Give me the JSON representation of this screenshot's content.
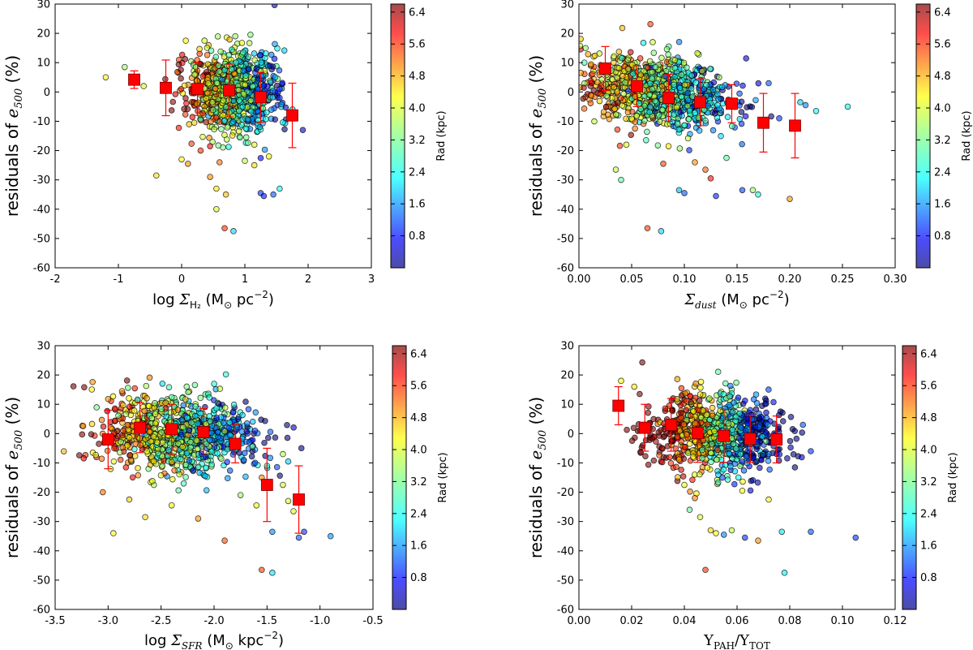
{
  "colors": {
    "scale": [
      "#00007f",
      "#0000ff",
      "#007fff",
      "#00ffff",
      "#7fff7f",
      "#ffff00",
      "#ff7f00",
      "#ff0000",
      "#7f0000"
    ],
    "median_marker": "#ff0000",
    "error_bar": "#ff0000"
  },
  "colorbar": {
    "label": "Rad (kpc)",
    "min": 0.0,
    "max": 6.6,
    "ticks": [
      "0.8",
      "1.6",
      "2.4",
      "3.2",
      "4.0",
      "4.8",
      "5.6",
      "6.4"
    ]
  },
  "chart_data": [
    {
      "type": "scatter",
      "ylabel_main": "residuals of ",
      "ylabel_math": "e",
      "ylabel_sub": "500",
      "ylabel_tail": " (%)",
      "xlabel_parts": [
        {
          "t": "log ",
          "cls": ""
        },
        {
          "t": "Σ",
          "cls": "math"
        },
        {
          "t": "H₂",
          "cls": "sub"
        },
        {
          "t": " (M",
          "cls": ""
        },
        {
          "t": "⊙",
          "cls": "sub"
        },
        {
          "t": " pc",
          "cls": ""
        },
        {
          "t": "−2",
          "cls": "sup"
        },
        {
          "t": ")",
          "cls": ""
        }
      ],
      "xlim": [
        -2,
        3
      ],
      "ylim": [
        -60,
        30
      ],
      "xticks": [
        "-2",
        "-1",
        "0",
        "1",
        "2",
        "3"
      ],
      "yticks": [
        "-60",
        "-50",
        "-40",
        "-30",
        "-20",
        "-10",
        "0",
        "10",
        "20",
        "30"
      ],
      "medians": {
        "x": [
          -0.75,
          -0.25,
          0.25,
          0.75,
          1.25,
          1.75
        ],
        "y": [
          4.2,
          1.4,
          1.0,
          0.5,
          -1.8,
          -8.0
        ],
        "err": [
          3.0,
          9.5,
          9.0,
          9.0,
          8.5,
          11.0
        ]
      },
      "cloud": {
        "x_center": 0.8,
        "x_spread": 0.35,
        "y_center": 0.5,
        "y_spread": 7,
        "x_slope": -2.5,
        "rad_slope": -3.0,
        "n": 900
      },
      "outliers": [
        {
          "x": -1.2,
          "y": 5.0,
          "rad": 4.2
        },
        {
          "x": -0.9,
          "y": 8.5,
          "rad": 3.5
        },
        {
          "x": -0.6,
          "y": 2.0,
          "rad": 4.0
        },
        {
          "x": -0.4,
          "y": -28.5,
          "rad": 4.5
        },
        {
          "x": 0.0,
          "y": -23.0,
          "rad": 4.3
        },
        {
          "x": 0.1,
          "y": -24.5,
          "rad": 5.0
        },
        {
          "x": 0.3,
          "y": -20.0,
          "rad": 5.6
        },
        {
          "x": 0.45,
          "y": -18.5,
          "rad": 5.9
        },
        {
          "x": 0.45,
          "y": -29.0,
          "rad": 5.0
        },
        {
          "x": 0.55,
          "y": -33.0,
          "rad": 4.4
        },
        {
          "x": 0.6,
          "y": -24.0,
          "rad": 5.2
        },
        {
          "x": 0.55,
          "y": -40.0,
          "rad": 4.0
        },
        {
          "x": 0.7,
          "y": -35.0,
          "rad": 4.7
        },
        {
          "x": 0.68,
          "y": -46.5,
          "rad": 5.6
        },
        {
          "x": 0.82,
          "y": -47.5,
          "rad": 2.0
        },
        {
          "x": 1.0,
          "y": -23.5,
          "rad": 3.8
        },
        {
          "x": 1.15,
          "y": -25.0,
          "rad": 4.5
        },
        {
          "x": 1.25,
          "y": -34.5,
          "rad": 1.0
        },
        {
          "x": 1.3,
          "y": -35.5,
          "rad": 0.8
        },
        {
          "x": 1.38,
          "y": -22.0,
          "rad": 4.2
        },
        {
          "x": 1.45,
          "y": -35.0,
          "rad": 1.2
        },
        {
          "x": 1.55,
          "y": -33.0,
          "rad": 2.3
        },
        {
          "x": 1.55,
          "y": 1.0,
          "rad": 1.0
        },
        {
          "x": 1.55,
          "y": -2.0,
          "rad": 1.0
        },
        {
          "x": 1.15,
          "y": -18.0,
          "rad": 4.0
        },
        {
          "x": 0.2,
          "y": -10.5,
          "rad": 4.6
        }
      ]
    },
    {
      "type": "scatter",
      "ylabel_main": "residuals of ",
      "ylabel_math": "e",
      "ylabel_sub": "500",
      "ylabel_tail": " (%)",
      "xlabel_parts": [
        {
          "t": "Σ",
          "cls": "math"
        },
        {
          "t": "dust",
          "cls": "submath"
        },
        {
          "t": " (M",
          "cls": ""
        },
        {
          "t": "⊙",
          "cls": "sub"
        },
        {
          "t": " pc",
          "cls": ""
        },
        {
          "t": "−2",
          "cls": "sup"
        },
        {
          "t": ")",
          "cls": ""
        }
      ],
      "xlim": [
        0.0,
        0.3
      ],
      "ylim": [
        -60,
        30
      ],
      "xticks": [
        "0.00",
        "0.05",
        "0.10",
        "0.15",
        "0.20",
        "0.25",
        "0.30"
      ],
      "yticks": [
        "-60",
        "-50",
        "-40",
        "-30",
        "-20",
        "-10",
        "0",
        "10",
        "20",
        "30"
      ],
      "medians": {
        "x": [
          0.025,
          0.055,
          0.085,
          0.115,
          0.145,
          0.175,
          0.205
        ],
        "y": [
          8.0,
          2.0,
          -2.0,
          -3.5,
          -4.0,
          -10.5,
          -11.5
        ],
        "err": [
          7.5,
          7.0,
          8.0,
          8.0,
          6.5,
          10.0,
          11.0
        ]
      },
      "cloud": {
        "x_center": 0.075,
        "x_spread": 0.035,
        "y_center": 0.0,
        "y_spread": 6,
        "x_slope": -90,
        "rad_slope": -30,
        "n": 900
      },
      "outliers": [
        {
          "x": 0.035,
          "y": -26.5,
          "rad": 3.8
        },
        {
          "x": 0.04,
          "y": -30.0,
          "rad": 3.0
        },
        {
          "x": 0.065,
          "y": -46.5,
          "rad": 5.5
        },
        {
          "x": 0.078,
          "y": -47.5,
          "rad": 2.0
        },
        {
          "x": 0.08,
          "y": -24.5,
          "rad": 5.5
        },
        {
          "x": 0.095,
          "y": -33.5,
          "rad": 1.8
        },
        {
          "x": 0.1,
          "y": -34.5,
          "rad": 1.2
        },
        {
          "x": 0.11,
          "y": -24.0,
          "rad": 5.0
        },
        {
          "x": 0.12,
          "y": -26.5,
          "rad": 5.3
        },
        {
          "x": 0.125,
          "y": -29.5,
          "rad": 5.8
        },
        {
          "x": 0.13,
          "y": -35.5,
          "rad": 0.9
        },
        {
          "x": 0.14,
          "y": -22.5,
          "rad": 3.0
        },
        {
          "x": 0.155,
          "y": -33.5,
          "rad": 1.1
        },
        {
          "x": 0.165,
          "y": -33.5,
          "rad": 3.5
        },
        {
          "x": 0.17,
          "y": -35.0,
          "rad": 2.5
        },
        {
          "x": 0.18,
          "y": 3.0,
          "rad": 1.2
        },
        {
          "x": 0.19,
          "y": -9.0,
          "rad": 1.0
        },
        {
          "x": 0.2,
          "y": -36.5,
          "rad": 5.0
        },
        {
          "x": 0.21,
          "y": -3.5,
          "rad": 2.0
        },
        {
          "x": 0.215,
          "y": -4.5,
          "rad": 1.5
        },
        {
          "x": 0.225,
          "y": -6.5,
          "rad": 2.3
        },
        {
          "x": 0.255,
          "y": -5.0,
          "rad": 2.3
        },
        {
          "x": 0.045,
          "y": -18.0,
          "rad": 4.1
        },
        {
          "x": 0.085,
          "y": -18.5,
          "rad": 4.4
        },
        {
          "x": 0.07,
          "y": 17.0,
          "rad": 3.9
        }
      ]
    },
    {
      "type": "scatter",
      "ylabel_main": "residuals of ",
      "ylabel_math": "e",
      "ylabel_sub": "500",
      "ylabel_tail": " (%)",
      "xlabel_parts": [
        {
          "t": "log ",
          "cls": ""
        },
        {
          "t": "Σ",
          "cls": "math"
        },
        {
          "t": "SFR",
          "cls": "submath"
        },
        {
          "t": " (M",
          "cls": ""
        },
        {
          "t": "⊙",
          "cls": "sub"
        },
        {
          "t": " kpc",
          "cls": ""
        },
        {
          "t": "−2",
          "cls": "sup"
        },
        {
          "t": ")",
          "cls": ""
        }
      ],
      "xlim": [
        -3.5,
        -0.5
      ],
      "ylim": [
        -60,
        30
      ],
      "xticks": [
        "-3.5",
        "-3.0",
        "-2.5",
        "-2.0",
        "-1.5",
        "-1.0",
        "-0.5"
      ],
      "yticks": [
        "-60",
        "-50",
        "-40",
        "-30",
        "-20",
        "-10",
        "0",
        "10",
        "20",
        "30"
      ],
      "medians": {
        "x": [
          -3.0,
          -2.7,
          -2.4,
          -2.1,
          -1.8,
          -1.5,
          -1.2
        ],
        "y": [
          -2.0,
          2.0,
          1.5,
          0.5,
          -3.5,
          -17.5,
          -22.5
        ],
        "err": [
          10.0,
          8.5,
          8.5,
          8.0,
          6.5,
          12.5,
          11.5
        ]
      },
      "cloud": {
        "x_center": -2.35,
        "x_spread": 0.38,
        "y_center": 0.0,
        "y_spread": 6.5,
        "x_slope": -4,
        "rad_slope": -3.2,
        "n": 900
      },
      "outliers": [
        {
          "x": -3.05,
          "y": -20.0,
          "rad": 5.2
        },
        {
          "x": -2.95,
          "y": -34.0,
          "rad": 4.2
        },
        {
          "x": -2.65,
          "y": -28.5,
          "rad": 4.5
        },
        {
          "x": -2.8,
          "y": -22.5,
          "rad": 4.6
        },
        {
          "x": -2.4,
          "y": -24.5,
          "rad": 4.3
        },
        {
          "x": -2.15,
          "y": -29.0,
          "rad": 5.0
        },
        {
          "x": -1.9,
          "y": -36.5,
          "rad": 5.4
        },
        {
          "x": -1.75,
          "y": -21.0,
          "rad": 3.5
        },
        {
          "x": -1.6,
          "y": -24.5,
          "rad": 4.2
        },
        {
          "x": -1.55,
          "y": -46.5,
          "rad": 5.5
        },
        {
          "x": -1.45,
          "y": -47.5,
          "rad": 2.1
        },
        {
          "x": -1.45,
          "y": -33.5,
          "rad": 1.5
        },
        {
          "x": -1.3,
          "y": -23.0,
          "rad": 4.0
        },
        {
          "x": -1.25,
          "y": -26.5,
          "rad": 4.1
        },
        {
          "x": -1.2,
          "y": -35.5,
          "rad": 1.2
        },
        {
          "x": -1.15,
          "y": -33.5,
          "rad": 1.0
        },
        {
          "x": -0.9,
          "y": -35.0,
          "rad": 1.6
        },
        {
          "x": -1.35,
          "y": -17.5,
          "rad": 4.0
        },
        {
          "x": -1.5,
          "y": -11.0,
          "rad": 3.0
        },
        {
          "x": -1.55,
          "y": -15.0,
          "rad": 5.0
        },
        {
          "x": -1.35,
          "y": -7.0,
          "rad": 3.8
        },
        {
          "x": -1.3,
          "y": -9.5,
          "rad": 2.0
        }
      ]
    },
    {
      "type": "scatter",
      "ylabel_main": "residuals of ",
      "ylabel_math": "e",
      "ylabel_sub": "500",
      "ylabel_tail": " (%)",
      "xlabel_parts": [
        {
          "t": "Y",
          "cls": "serif"
        },
        {
          "t": "PAH",
          "cls": "subserif"
        },
        {
          "t": "/Y",
          "cls": "serif"
        },
        {
          "t": "TOT",
          "cls": "subserif"
        }
      ],
      "xlim": [
        0.0,
        0.12
      ],
      "ylim": [
        -60,
        30
      ],
      "xticks": [
        "0.00",
        "0.02",
        "0.04",
        "0.06",
        "0.08",
        "0.10",
        "0.12"
      ],
      "yticks": [
        "-60",
        "-50",
        "-40",
        "-30",
        "-20",
        "-10",
        "0",
        "10",
        "20",
        "30"
      ],
      "medians": {
        "x": [
          0.015,
          0.025,
          0.035,
          0.045,
          0.055,
          0.065,
          0.075
        ],
        "y": [
          9.5,
          2.0,
          3.0,
          0.2,
          -0.8,
          -1.8,
          -2.0
        ],
        "err": [
          6.5,
          8.0,
          9.0,
          10.0,
          9.0,
          8.0,
          8.0
        ]
      },
      "cloud": {
        "x_center": 0.052,
        "x_spread": 0.012,
        "y_center": 0.5,
        "y_spread": 6.5,
        "x_slope": -60,
        "rad_slope": -160,
        "n": 900
      },
      "outliers": [
        {
          "x": 0.016,
          "y": 18.0,
          "rad": 4.3
        },
        {
          "x": 0.021,
          "y": 16.0,
          "rad": 4.4
        },
        {
          "x": 0.042,
          "y": -26.0,
          "rad": 3.0
        },
        {
          "x": 0.044,
          "y": -22.0,
          "rad": 5.1
        },
        {
          "x": 0.046,
          "y": -28.5,
          "rad": 4.0
        },
        {
          "x": 0.048,
          "y": -46.5,
          "rad": 5.6
        },
        {
          "x": 0.05,
          "y": -33.0,
          "rad": 4.5
        },
        {
          "x": 0.052,
          "y": -34.0,
          "rad": 4.2
        },
        {
          "x": 0.055,
          "y": -34.5,
          "rad": 1.5
        },
        {
          "x": 0.058,
          "y": -33.0,
          "rad": 3.8
        },
        {
          "x": 0.063,
          "y": -35.5,
          "rad": 1.0
        },
        {
          "x": 0.068,
          "y": -36.5,
          "rad": 5.0
        },
        {
          "x": 0.072,
          "y": -22.5,
          "rad": 4.2
        },
        {
          "x": 0.077,
          "y": -33.5,
          "rad": 2.1
        },
        {
          "x": 0.078,
          "y": -47.5,
          "rad": 2.2
        },
        {
          "x": 0.088,
          "y": -33.5,
          "rad": 1.2
        },
        {
          "x": 0.105,
          "y": -35.5,
          "rad": 1.0
        },
        {
          "x": 0.085,
          "y": 3.0,
          "rad": 1.2
        },
        {
          "x": 0.088,
          "y": -6.0,
          "rad": 1.0
        },
        {
          "x": 0.062,
          "y": -19.5,
          "rad": 4.3
        },
        {
          "x": 0.04,
          "y": -17.5,
          "rad": 4.2
        }
      ]
    }
  ]
}
